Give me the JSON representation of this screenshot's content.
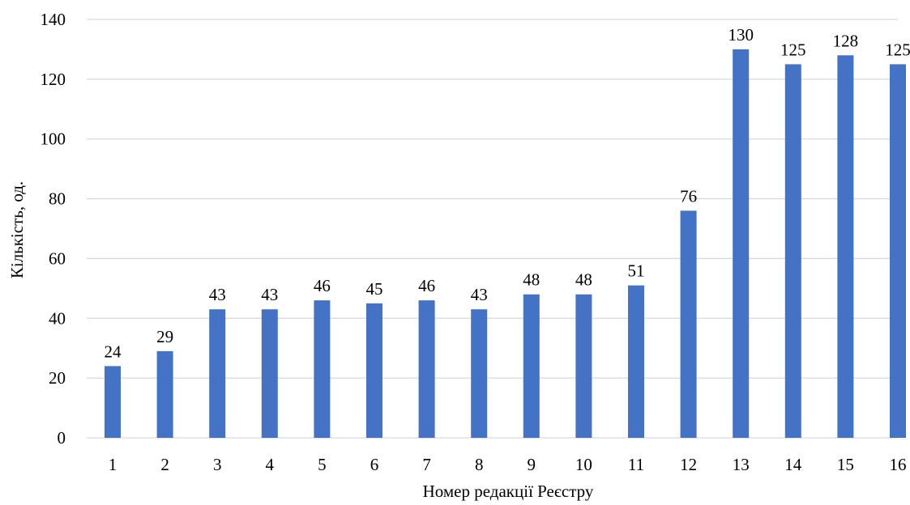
{
  "chart_data": {
    "type": "bar",
    "categories": [
      "1",
      "2",
      "3",
      "4",
      "5",
      "6",
      "7",
      "8",
      "9",
      "10",
      "11",
      "12",
      "13",
      "14",
      "15",
      "16"
    ],
    "values": [
      24,
      29,
      43,
      43,
      46,
      45,
      46,
      43,
      48,
      48,
      51,
      76,
      130,
      125,
      128,
      125
    ],
    "xlabel": "Номер редакції Реєстру",
    "ylabel": "Кількість, од.",
    "ylim": [
      0,
      140
    ],
    "yticks": [
      0,
      20,
      40,
      60,
      80,
      100,
      120,
      140
    ],
    "grid": true,
    "data_labels": true,
    "bar_color": "#4472c4"
  }
}
